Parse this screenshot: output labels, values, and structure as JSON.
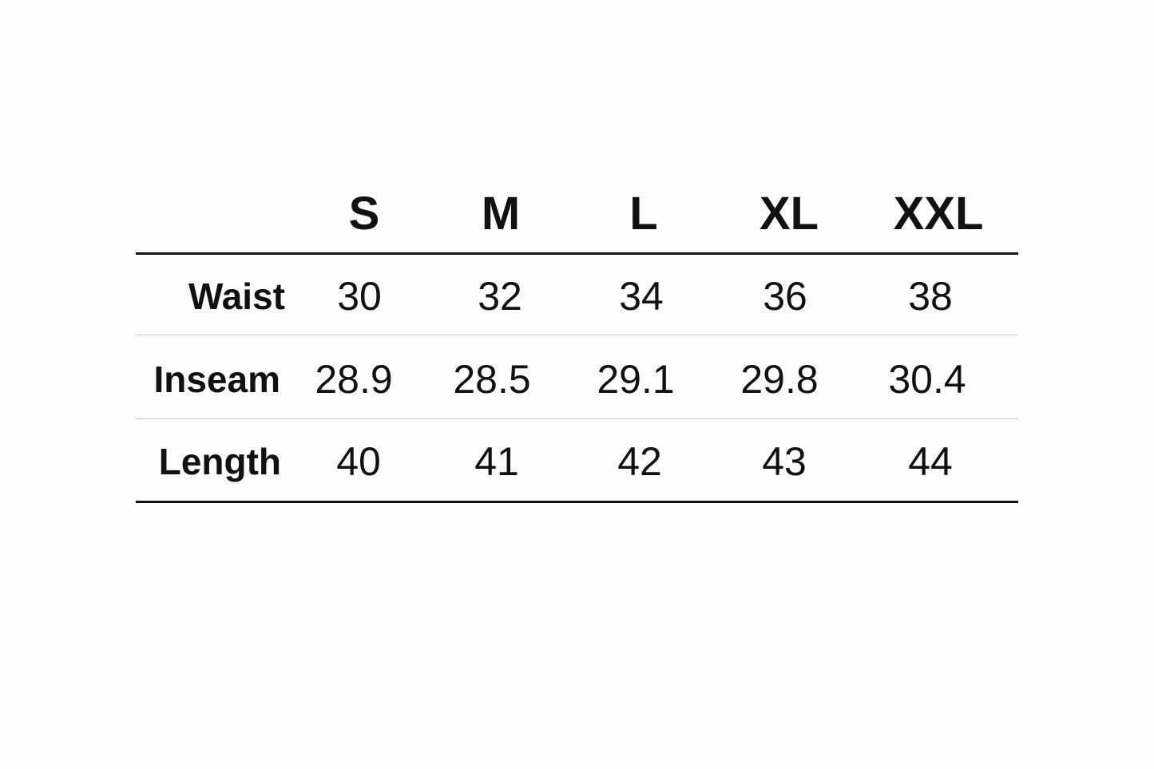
{
  "chart_data": {
    "type": "table",
    "columns": [
      "S",
      "M",
      "L",
      "XL",
      "XXL"
    ],
    "rows": [
      {
        "label": "Waist",
        "values": [
          "30",
          "32",
          "34",
          "36",
          "38"
        ]
      },
      {
        "label": "Inseam",
        "values": [
          "28.9",
          "28.5",
          "29.1",
          "29.8",
          "30.4"
        ]
      },
      {
        "label": "Length",
        "values": [
          "40",
          "41",
          "42",
          "43",
          "44"
        ]
      }
    ]
  }
}
